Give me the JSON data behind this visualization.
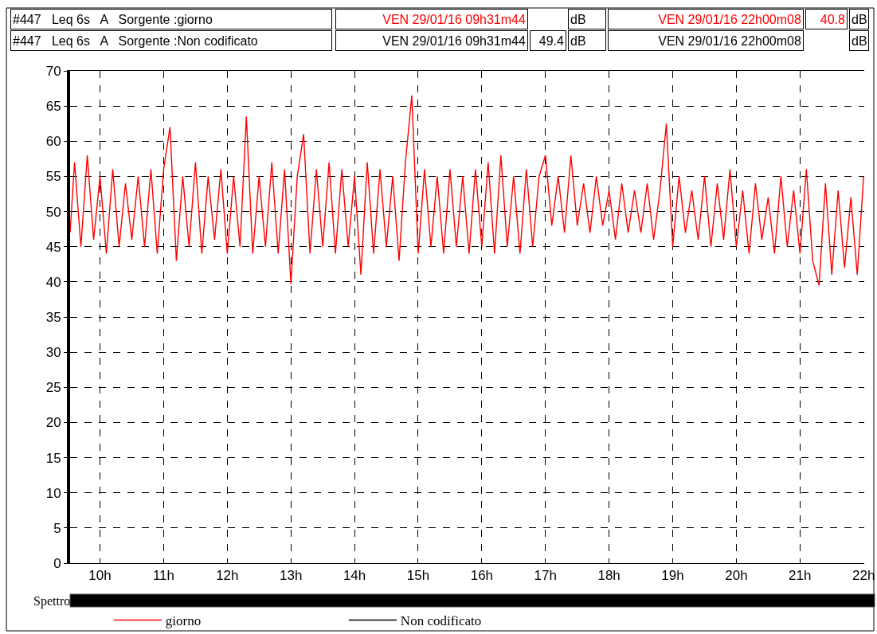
{
  "chart_data": {
    "type": "line",
    "xlim": [
      9.53,
      22.01
    ],
    "ylim": [
      0,
      70
    ],
    "xticks": [
      {
        "value": 10,
        "label": "10h"
      },
      {
        "value": 11,
        "label": "11h"
      },
      {
        "value": 12,
        "label": "12h"
      },
      {
        "value": 13,
        "label": "13h"
      },
      {
        "value": 14,
        "label": "14h"
      },
      {
        "value": 15,
        "label": "15h"
      },
      {
        "value": 16,
        "label": "16h"
      },
      {
        "value": 17,
        "label": "17h"
      },
      {
        "value": 18,
        "label": "18h"
      },
      {
        "value": 19,
        "label": "19h"
      },
      {
        "value": 20,
        "label": "20h"
      },
      {
        "value": 21,
        "label": "21h"
      },
      {
        "value": 22,
        "label": "22h"
      }
    ],
    "yticks": [
      0,
      5,
      10,
      15,
      20,
      25,
      30,
      35,
      40,
      45,
      50,
      55,
      60,
      65,
      70
    ],
    "grid": true,
    "legend": "bottom",
    "marker": "none",
    "line_style": "solid",
    "series": [
      {
        "name": "giorno",
        "color": "#ff0000",
        "x": [
          9.53,
          9.6,
          9.7,
          9.8,
          9.9,
          10.0,
          10.1,
          10.2,
          10.3,
          10.4,
          10.5,
          10.6,
          10.7,
          10.8,
          10.9,
          11.0,
          11.1,
          11.2,
          11.3,
          11.4,
          11.5,
          11.6,
          11.7,
          11.8,
          11.9,
          12.0,
          12.1,
          12.2,
          12.3,
          12.4,
          12.5,
          12.6,
          12.7,
          12.8,
          12.9,
          13.0,
          13.1,
          13.2,
          13.3,
          13.4,
          13.5,
          13.6,
          13.7,
          13.8,
          13.9,
          14.0,
          14.1,
          14.2,
          14.3,
          14.4,
          14.5,
          14.6,
          14.7,
          14.8,
          14.9,
          15.0,
          15.1,
          15.2,
          15.3,
          15.4,
          15.5,
          15.6,
          15.7,
          15.8,
          15.9,
          16.0,
          16.1,
          16.2,
          16.3,
          16.4,
          16.5,
          16.6,
          16.7,
          16.8,
          16.9,
          17.0,
          17.1,
          17.2,
          17.3,
          17.4,
          17.5,
          17.6,
          17.7,
          17.8,
          17.9,
          18.0,
          18.1,
          18.2,
          18.3,
          18.4,
          18.5,
          18.6,
          18.7,
          18.8,
          18.9,
          19.0,
          19.1,
          19.2,
          19.3,
          19.4,
          19.5,
          19.6,
          19.7,
          19.8,
          19.9,
          20.0,
          20.1,
          20.2,
          20.3,
          20.4,
          20.5,
          20.6,
          20.7,
          20.8,
          20.9,
          21.0,
          21.1,
          21.2,
          21.3,
          21.4,
          21.5,
          21.6,
          21.7,
          21.8,
          21.9,
          22.0
        ],
        "values": [
          47,
          57,
          45,
          58,
          46,
          55,
          44,
          56,
          45,
          54,
          46,
          55,
          45,
          56,
          44,
          56,
          62,
          43,
          55,
          45,
          57,
          44,
          55,
          46,
          56,
          44,
          55,
          45,
          63.5,
          44,
          55,
          45,
          57,
          44,
          56,
          39.7,
          55,
          61,
          44,
          56,
          45,
          57,
          44,
          56,
          45,
          55,
          41,
          57,
          44,
          56,
          45,
          55,
          43,
          57,
          66.5,
          44,
          56,
          45,
          55,
          44,
          56,
          45,
          55,
          44,
          56,
          45,
          57,
          44,
          58,
          45,
          55,
          44,
          56,
          45,
          55,
          58,
          48,
          55,
          47,
          58,
          48,
          54,
          47,
          55,
          48,
          53,
          46,
          54,
          47,
          53,
          47,
          54,
          46,
          53,
          62.5,
          45,
          55,
          47,
          53,
          46,
          55,
          45,
          54,
          46,
          56,
          45,
          53,
          44,
          54,
          46,
          52,
          44,
          55,
          45,
          53,
          44,
          56,
          43,
          39.5,
          54,
          41,
          53,
          42,
          52,
          41,
          55
        ]
      },
      {
        "name": "Non codificato",
        "color": "#000000"
      }
    ],
    "annotations": [
      "#447   Leq 6s   A   Sorgente :giorno",
      "VEN 29/01/16 09h31m44",
      "dB",
      "VEN 29/01/16 22h00m08",
      "40.8",
      "dB",
      "#447   Leq 6s   A   Sorgente :Non codificato",
      "VEN 29/01/16 09h31m44",
      "49.4",
      "dB",
      "VEN 29/01/16 22h00m08",
      "dB",
      "Spettro"
    ]
  }
}
